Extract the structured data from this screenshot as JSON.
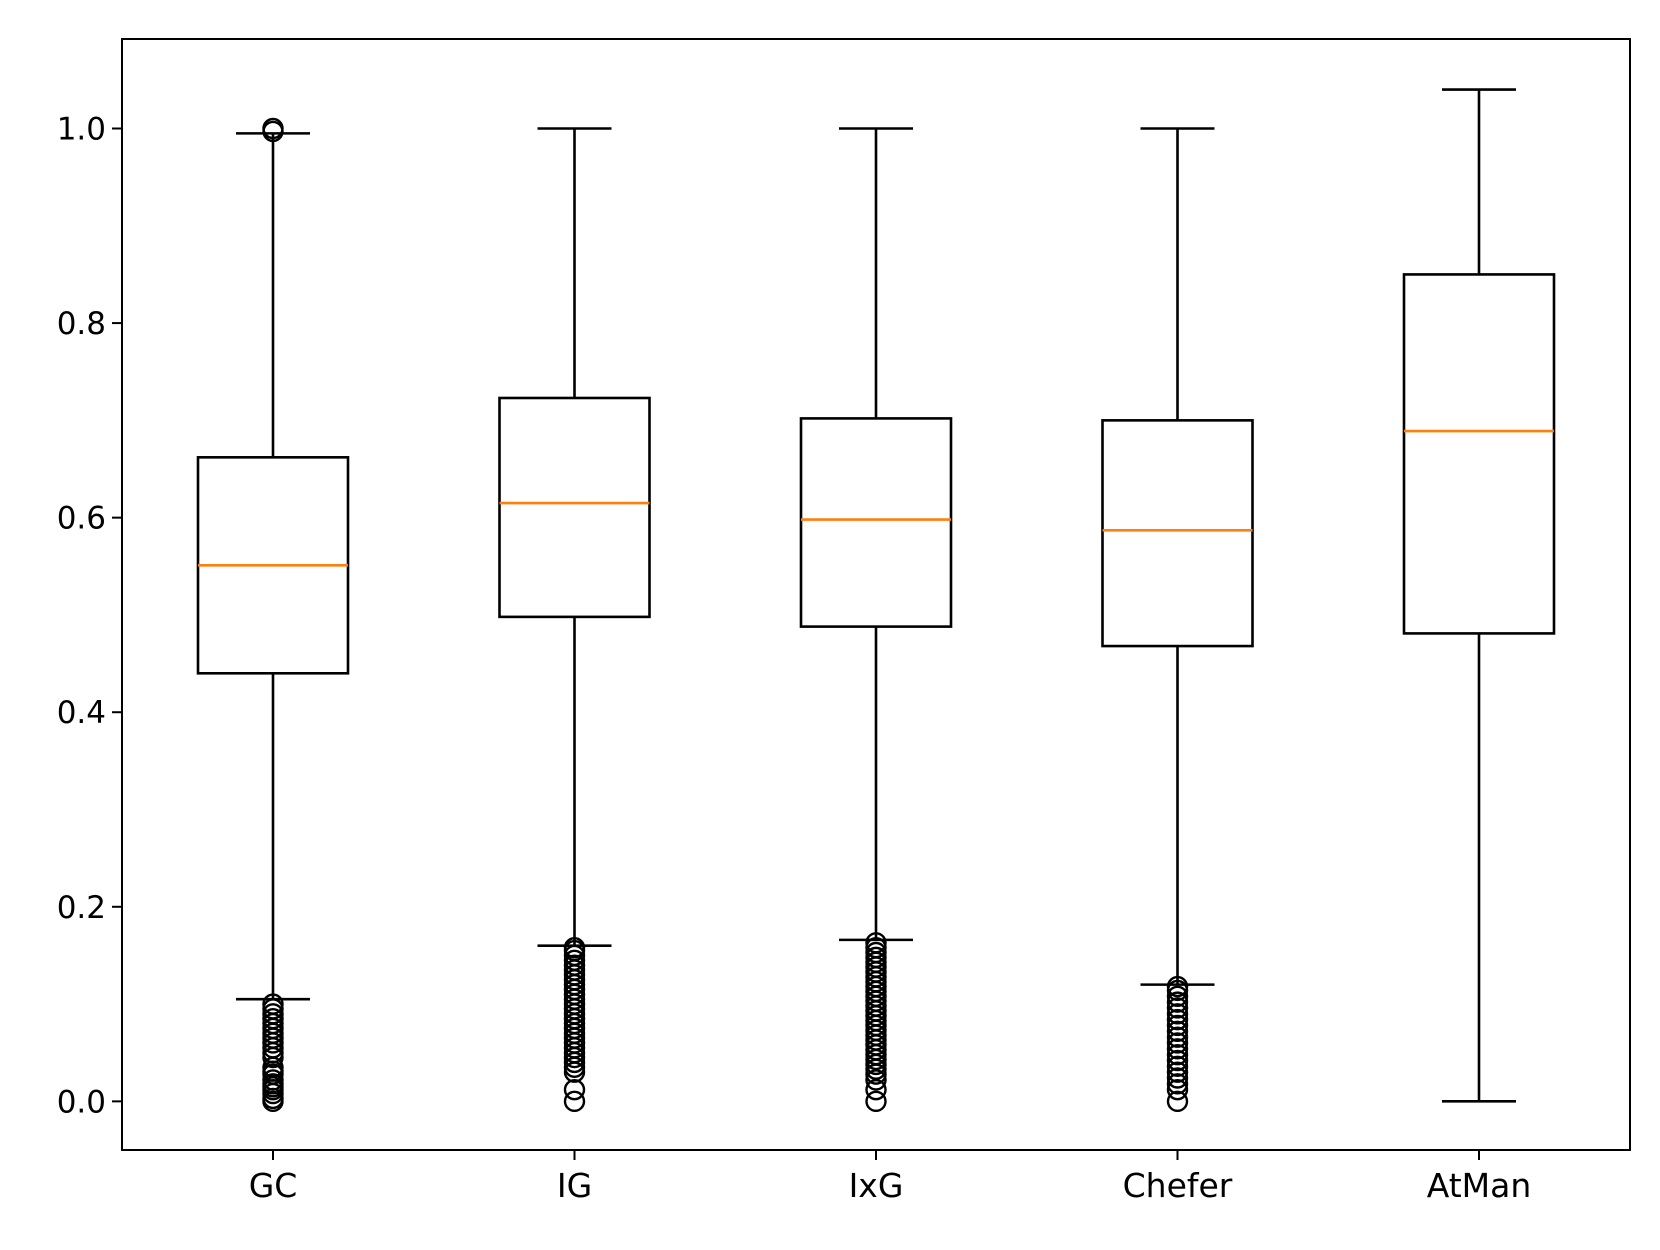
{
  "chart_data": {
    "type": "box",
    "title": "",
    "xlabel": "",
    "ylabel": "",
    "categories": [
      "GC",
      "IG",
      "IxG",
      "Chefer",
      "AtMan"
    ],
    "ylim": [
      -0.05,
      1.092
    ],
    "yticks": [
      0.0,
      0.2,
      0.4,
      0.6,
      0.8,
      1.0
    ],
    "ytick_labels": [
      "0.0",
      "0.2",
      "0.4",
      "0.6",
      "0.8",
      "1.0"
    ],
    "grid": false,
    "colors": {
      "box": "#000000",
      "median": "#ff7f0e",
      "outlier": "#000000"
    },
    "boxes": [
      {
        "label": "GC",
        "whisker_low": 0.105,
        "q1": 0.44,
        "median": 0.551,
        "q3": 0.662,
        "whisker_high": 0.995,
        "outliers": [
          0.0,
          0.003,
          0.008,
          0.012,
          0.015,
          0.018,
          0.022,
          0.028,
          0.031,
          0.035,
          0.045,
          0.05,
          0.055,
          0.06,
          0.065,
          0.07,
          0.075,
          0.08,
          0.085,
          0.09,
          0.095,
          0.1,
          0.997,
          1.0
        ]
      },
      {
        "label": "IG",
        "whisker_low": 0.16,
        "q1": 0.498,
        "median": 0.615,
        "q3": 0.723,
        "whisker_high": 1.0,
        "outliers": [
          0.0,
          0.012,
          0.03,
          0.035,
          0.04,
          0.045,
          0.05,
          0.055,
          0.06,
          0.065,
          0.07,
          0.075,
          0.08,
          0.085,
          0.09,
          0.095,
          0.1,
          0.105,
          0.11,
          0.115,
          0.12,
          0.125,
          0.13,
          0.135,
          0.14,
          0.145,
          0.15,
          0.155,
          0.158
        ]
      },
      {
        "label": "IxG",
        "whisker_low": 0.166,
        "q1": 0.488,
        "median": 0.598,
        "q3": 0.702,
        "whisker_high": 1.0,
        "outliers": [
          0.0,
          0.012,
          0.022,
          0.028,
          0.033,
          0.038,
          0.043,
          0.048,
          0.053,
          0.058,
          0.063,
          0.068,
          0.073,
          0.078,
          0.083,
          0.088,
          0.093,
          0.098,
          0.103,
          0.108,
          0.113,
          0.118,
          0.123,
          0.128,
          0.133,
          0.138,
          0.143,
          0.148,
          0.153,
          0.158,
          0.163
        ]
      },
      {
        "label": "Chefer",
        "whisker_low": 0.12,
        "q1": 0.468,
        "median": 0.587,
        "q3": 0.7,
        "whisker_high": 1.0,
        "outliers": [
          0.0,
          0.012,
          0.018,
          0.024,
          0.03,
          0.036,
          0.042,
          0.048,
          0.054,
          0.06,
          0.066,
          0.072,
          0.078,
          0.084,
          0.09,
          0.096,
          0.102,
          0.108,
          0.114,
          0.118
        ]
      },
      {
        "label": "AtMan",
        "whisker_low": 0.0,
        "q1": 0.481,
        "median": 0.689,
        "q3": 0.85,
        "whisker_high": 1.04,
        "outliers": []
      }
    ]
  }
}
